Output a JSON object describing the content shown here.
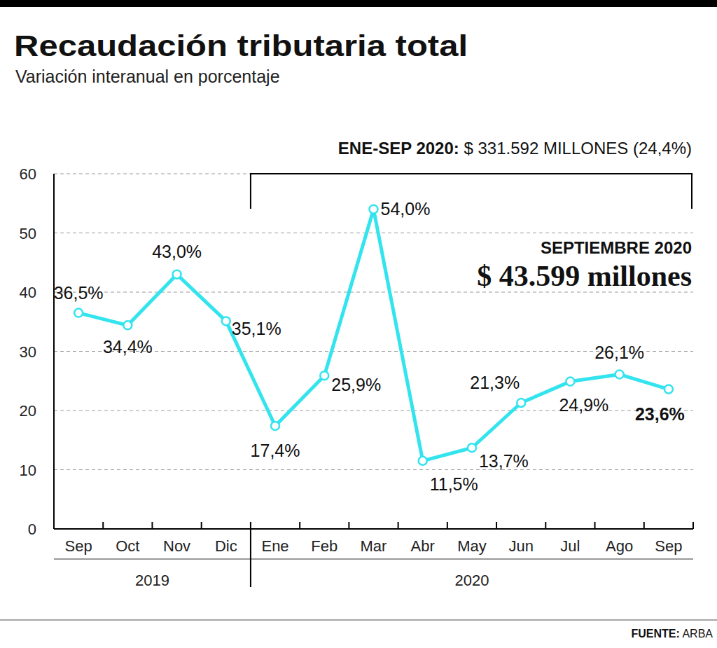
{
  "chart_data": {
    "type": "line",
    "title": "Recaudación tributaria total",
    "subtitle": "Variación interanual en porcentaje",
    "categories": [
      "Sep",
      "Oct",
      "Nov",
      "Dic",
      "Ene",
      "Feb",
      "Mar",
      "Abr",
      "May",
      "Jun",
      "Jul",
      "Ago",
      "Sep"
    ],
    "values": [
      36.5,
      34.4,
      43.0,
      35.1,
      17.4,
      25.9,
      54.0,
      11.5,
      13.7,
      21.3,
      24.9,
      26.1,
      23.6
    ],
    "value_labels": [
      "36,5%",
      "34,4%",
      "43,0%",
      "35,1%",
      "17,4%",
      "25,9%",
      "54,0%",
      "11,5%",
      "13,7%",
      "21,3%",
      "24,9%",
      "26,1%",
      "23,6%"
    ],
    "color": "#33e4ee",
    "marker": "circle",
    "data_labels": true,
    "ylim": [
      0,
      60
    ],
    "yticks": [
      0,
      10,
      20,
      30,
      40,
      50,
      60
    ],
    "grid": true,
    "groups": [
      {
        "label": "2019",
        "count": 4
      },
      {
        "label": "2020",
        "count": 9
      }
    ],
    "period_note": {
      "label": "ENE-SEP 2020:",
      "text": "$ 331.592 MILLONES (24,4%)"
    },
    "highlight": {
      "label": "SEPTIEMBRE 2020",
      "text": "$ 43.599 millones"
    },
    "source": {
      "label": "FUENTE:",
      "text": "ARBA"
    }
  }
}
